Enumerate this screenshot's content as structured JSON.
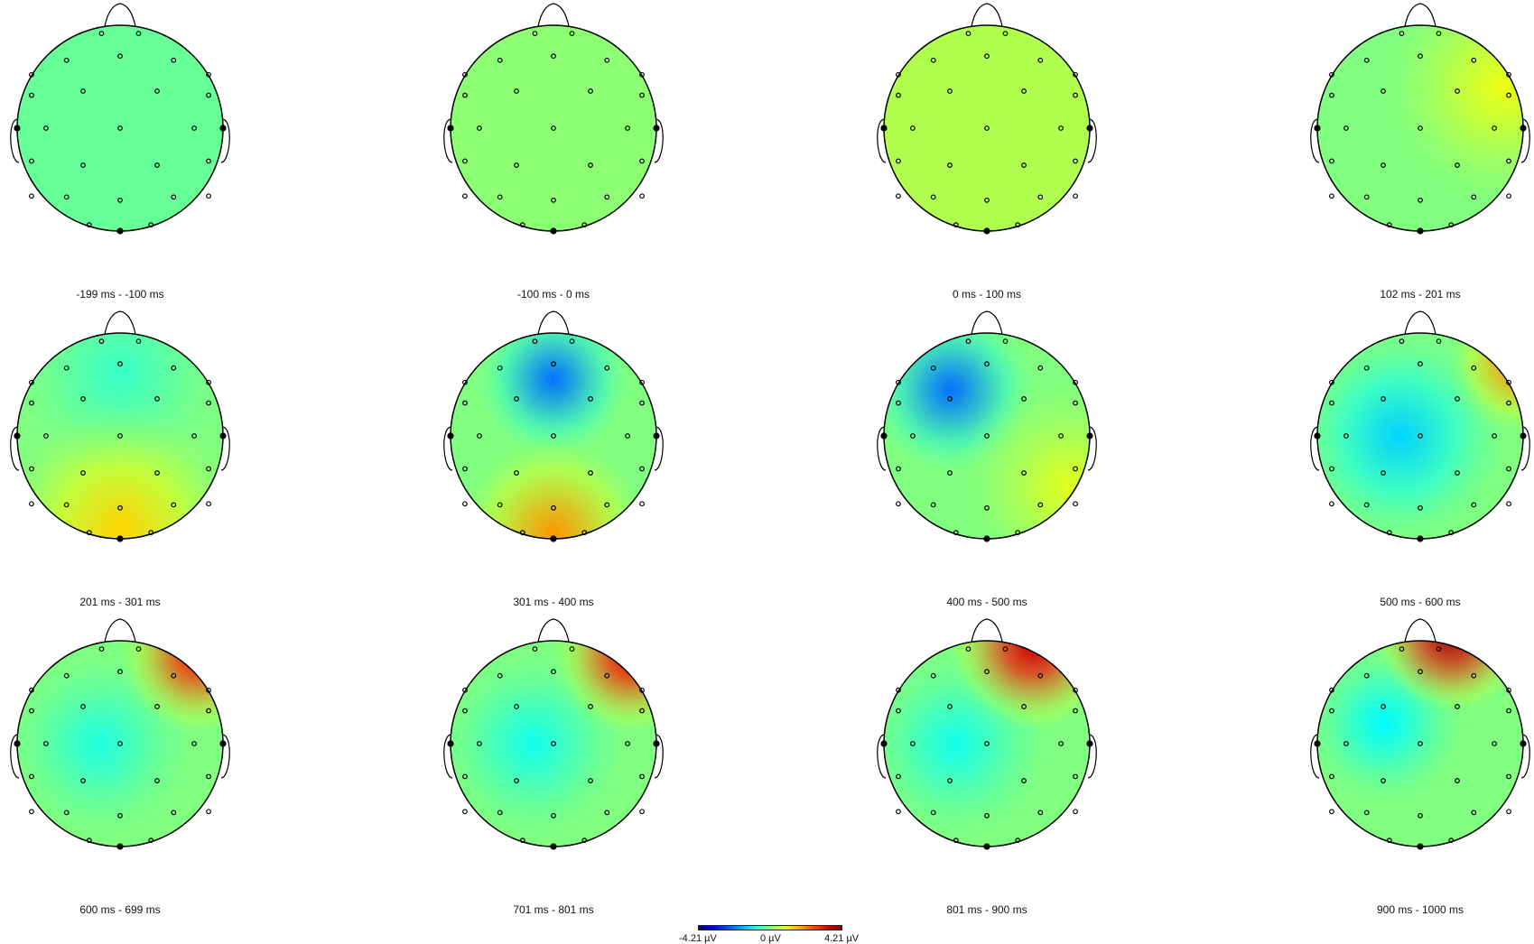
{
  "chart_data": {
    "type": "heatmap",
    "description_type": "topographic_maps",
    "colormap": "jet",
    "colorbar": {
      "min_label": "-4.21 µV",
      "mid_label": "0 µV",
      "max_label": "4.21 µV",
      "min": -4.21,
      "max": 4.21
    },
    "electrodes": [
      {
        "name": "Fp1",
        "pos": [
          -0.18,
          -0.92
        ]
      },
      {
        "name": "Fp2",
        "pos": [
          0.18,
          -0.92
        ]
      },
      {
        "name": "AF7",
        "pos": [
          -0.52,
          -0.66
        ]
      },
      {
        "name": "AFz",
        "pos": [
          0.0,
          -0.7
        ]
      },
      {
        "name": "AF8",
        "pos": [
          0.52,
          -0.66
        ]
      },
      {
        "name": "F7",
        "pos": [
          -0.86,
          -0.52
        ]
      },
      {
        "name": "F8",
        "pos": [
          0.86,
          -0.52
        ]
      },
      {
        "name": "F3",
        "pos": [
          -0.36,
          -0.36
        ]
      },
      {
        "name": "F4",
        "pos": [
          0.36,
          -0.36
        ]
      },
      {
        "name": "FT9",
        "pos": [
          -0.86,
          -0.32
        ]
      },
      {
        "name": "FT10",
        "pos": [
          0.86,
          -0.32
        ]
      },
      {
        "name": "T7",
        "pos": [
          -1.0,
          0.0
        ],
        "edge": true
      },
      {
        "name": "C3",
        "pos": [
          -0.72,
          0.0
        ]
      },
      {
        "name": "Cz",
        "pos": [
          0.0,
          0.0
        ]
      },
      {
        "name": "C4",
        "pos": [
          0.72,
          0.0
        ]
      },
      {
        "name": "T8",
        "pos": [
          1.0,
          0.0
        ],
        "edge": true
      },
      {
        "name": "TP9",
        "pos": [
          -0.86,
          0.32
        ]
      },
      {
        "name": "TP10",
        "pos": [
          0.86,
          0.32
        ]
      },
      {
        "name": "P3",
        "pos": [
          -0.36,
          0.36
        ]
      },
      {
        "name": "P4",
        "pos": [
          0.36,
          0.36
        ]
      },
      {
        "name": "P7",
        "pos": [
          -0.86,
          0.66
        ]
      },
      {
        "name": "P8",
        "pos": [
          0.86,
          0.66
        ]
      },
      {
        "name": "PO7",
        "pos": [
          -0.52,
          0.67
        ]
      },
      {
        "name": "POz",
        "pos": [
          0.0,
          0.7
        ]
      },
      {
        "name": "PO8",
        "pos": [
          0.52,
          0.67
        ]
      },
      {
        "name": "O1",
        "pos": [
          -0.3,
          0.94
        ]
      },
      {
        "name": "O2",
        "pos": [
          0.3,
          0.94
        ]
      },
      {
        "name": "Oz",
        "pos": [
          0.0,
          1.0
        ],
        "edge": true
      }
    ],
    "maps": [
      {
        "label": "-199 ms - -100 ms",
        "blobs": [
          {
            "x": 0,
            "y": 0,
            "v": -0.2,
            "s": 2.0
          }
        ]
      },
      {
        "label": "-100 ms - 0 ms",
        "blobs": [
          {
            "x": 0,
            "y": 0,
            "v": 0.1,
            "s": 2.0
          }
        ]
      },
      {
        "label": "0 ms - 100 ms",
        "blobs": [
          {
            "x": 0,
            "y": 0,
            "v": 0.4,
            "s": 2.0
          }
        ]
      },
      {
        "label": "102 ms - 201 ms",
        "blobs": [
          {
            "x": -0.4,
            "y": -0.3,
            "v": 0.0,
            "s": 1.0
          },
          {
            "x": 0.8,
            "y": -0.4,
            "v": 0.9,
            "s": 0.9
          }
        ]
      },
      {
        "label": "201 ms - 301 ms",
        "blobs": [
          {
            "x": 0,
            "y": -0.6,
            "v": -0.6,
            "s": 0.8
          },
          {
            "x": 0,
            "y": 0.9,
            "v": 1.4,
            "s": 0.9
          }
        ]
      },
      {
        "label": "301 ms - 400 ms",
        "blobs": [
          {
            "x": 0,
            "y": -0.55,
            "v": -2.2,
            "s": 0.55
          },
          {
            "x": 0,
            "y": 0.95,
            "v": 1.9,
            "s": 0.7
          }
        ]
      },
      {
        "label": "400 ms - 500 ms",
        "blobs": [
          {
            "x": -0.35,
            "y": -0.45,
            "v": -2.2,
            "s": 0.6
          },
          {
            "x": 0.8,
            "y": 0.5,
            "v": 0.8,
            "s": 0.8
          }
        ]
      },
      {
        "label": "500 ms - 600 ms",
        "blobs": [
          {
            "x": -0.2,
            "y": 0.0,
            "v": -1.4,
            "s": 0.8
          },
          {
            "x": 0.95,
            "y": -0.7,
            "v": 2.0,
            "s": 0.5
          }
        ]
      },
      {
        "label": "600 ms - 699 ms",
        "blobs": [
          {
            "x": -0.2,
            "y": 0.0,
            "v": -0.8,
            "s": 0.7
          },
          {
            "x": 0.75,
            "y": -0.85,
            "v": 3.0,
            "s": 0.55
          }
        ]
      },
      {
        "label": "701 ms - 801 ms",
        "blobs": [
          {
            "x": -0.2,
            "y": 0.0,
            "v": -0.9,
            "s": 0.7
          },
          {
            "x": 0.75,
            "y": -0.85,
            "v": 3.2,
            "s": 0.55
          }
        ]
      },
      {
        "label": "801 ms - 900 ms",
        "blobs": [
          {
            "x": -0.3,
            "y": 0.0,
            "v": -0.9,
            "s": 0.7
          },
          {
            "x": 0.45,
            "y": -0.95,
            "v": 3.5,
            "s": 0.6
          }
        ]
      },
      {
        "label": "900 ms - 1000 ms",
        "blobs": [
          {
            "x": -0.35,
            "y": -0.2,
            "v": -1.1,
            "s": 0.6
          },
          {
            "x": 0.3,
            "y": -1.05,
            "v": 3.8,
            "s": 0.55
          }
        ]
      }
    ]
  }
}
